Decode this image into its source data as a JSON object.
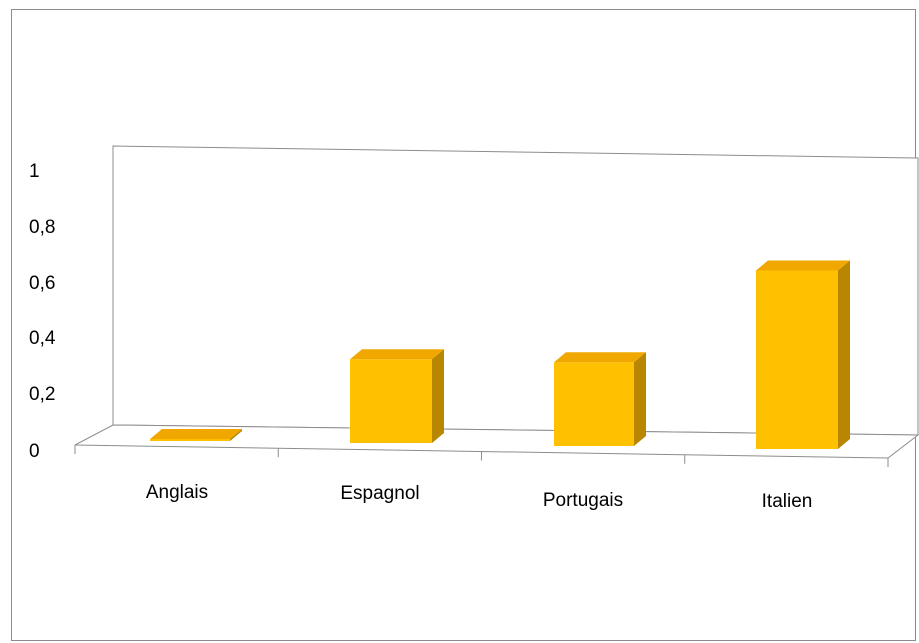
{
  "chart_data": {
    "type": "bar",
    "style": "3d-column",
    "categories": [
      "Anglais",
      "Espagnol",
      "Portugais",
      "Italien"
    ],
    "series": [
      {
        "values": [
          0,
          0.3,
          0.3,
          0.64
        ]
      }
    ],
    "yticks": [
      "0",
      "0,2",
      "0,4",
      "0,6",
      "0,8",
      "1"
    ],
    "ylim": [
      0,
      1
    ],
    "grid": false,
    "legend": "none",
    "colors": {
      "bar_front": "#ffc000",
      "bar_top": "#f0a800",
      "bar_side": "#b88600",
      "axis": "#8c8c8c",
      "frame": "#8c8c8c"
    }
  }
}
